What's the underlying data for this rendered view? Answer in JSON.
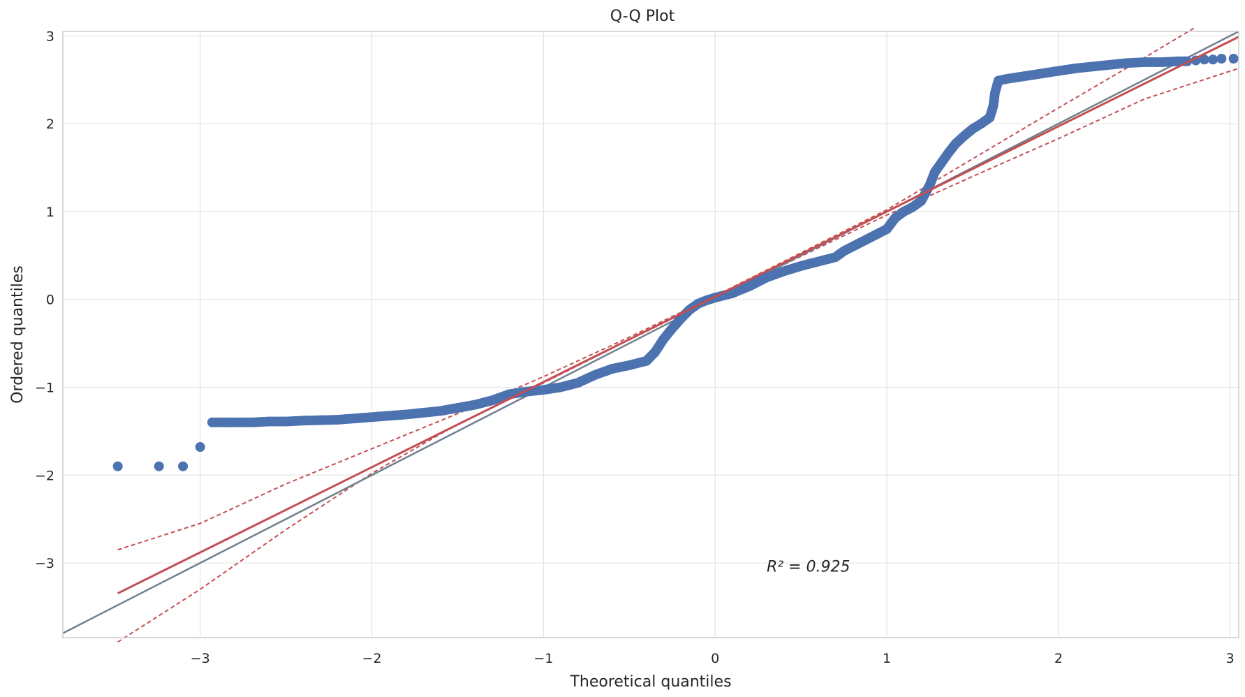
{
  "chart_data": {
    "type": "scatter",
    "title": "Q-Q Plot",
    "xlabel": "Theoretical quantiles",
    "ylabel": "Ordered quantiles",
    "xlim": [
      -3.8,
      3.05
    ],
    "ylim": [
      -3.85,
      3.05
    ],
    "grid": true,
    "x_ticks": [
      -3,
      -2,
      -1,
      0,
      1,
      2,
      3
    ],
    "x_tick_labels": [
      "−3",
      "−2",
      "−1",
      "0",
      "1",
      "2",
      "3"
    ],
    "y_ticks": [
      -3,
      -2,
      -1,
      0,
      1,
      2,
      3
    ],
    "y_tick_labels": [
      "−3",
      "−2",
      "−1",
      "0",
      "1",
      "2",
      "3"
    ],
    "annotation": {
      "text": "R² = 0.925",
      "x": 0.3,
      "y": -3.1
    },
    "reference_line": {
      "slope": 1.0,
      "intercept": 0.0,
      "color": "#708090"
    },
    "fit_line": {
      "slope": 0.97,
      "intercept": 0.03,
      "x_range": [
        -3.48,
        3.05
      ],
      "color": "#c44e52"
    },
    "confidence_band": {
      "color": "#c44e52",
      "upper": [
        [
          -3.48,
          -2.85
        ],
        [
          -3.0,
          -2.55
        ],
        [
          -2.5,
          -2.1
        ],
        [
          -2.0,
          -1.7
        ],
        [
          -1.5,
          -1.3
        ],
        [
          -1.0,
          -0.88
        ],
        [
          -0.5,
          -0.43
        ],
        [
          0.0,
          0.04
        ],
        [
          0.5,
          0.53
        ],
        [
          1.0,
          1.02
        ],
        [
          1.5,
          1.6
        ],
        [
          2.0,
          2.18
        ],
        [
          2.5,
          2.75
        ],
        [
          2.8,
          3.1
        ]
      ],
      "lower": [
        [
          -3.48,
          -3.9
        ],
        [
          -3.0,
          -3.3
        ],
        [
          -2.5,
          -2.62
        ],
        [
          -2.0,
          -1.98
        ],
        [
          -1.5,
          -1.42
        ],
        [
          -1.0,
          -0.95
        ],
        [
          -0.5,
          -0.46
        ],
        [
          0.0,
          0.02
        ],
        [
          0.5,
          0.49
        ],
        [
          1.0,
          0.96
        ],
        [
          1.5,
          1.4
        ],
        [
          2.0,
          1.83
        ],
        [
          2.5,
          2.28
        ],
        [
          3.05,
          2.63
        ]
      ]
    },
    "point_color": "#4c72b0",
    "series": [
      {
        "x": [
          -3.48,
          -3.24,
          -3.1,
          -3.0,
          -2.93,
          -2.87,
          -2.82,
          -2.78,
          -2.74,
          -2.7,
          -2.6,
          -2.5,
          -2.4,
          -2.2,
          -2.0,
          -1.8,
          -1.6,
          -1.4,
          -1.3,
          -1.2,
          -1.1,
          -1.0,
          -0.9,
          -0.8,
          -0.7,
          -0.6,
          -0.5,
          -0.4,
          -0.35,
          -0.3,
          -0.25,
          -0.2,
          -0.15,
          -0.1,
          -0.05,
          0.0,
          0.1,
          0.2,
          0.3,
          0.4,
          0.5,
          0.6,
          0.7,
          0.75,
          0.8,
          0.9,
          1.0,
          1.05,
          1.1,
          1.15,
          1.2,
          1.25,
          1.28,
          1.32,
          1.36,
          1.4,
          1.45,
          1.5,
          1.55,
          1.6,
          1.62,
          1.63,
          1.65,
          1.7,
          1.8,
          1.9,
          2.0,
          2.1,
          2.2,
          2.3,
          2.4,
          2.5,
          2.6,
          2.7,
          2.75,
          2.8,
          2.85,
          2.9,
          2.95,
          3.02
        ],
        "y": [
          -1.9,
          -1.9,
          -1.9,
          -1.68,
          -1.4,
          -1.4,
          -1.4,
          -1.4,
          -1.4,
          -1.4,
          -1.39,
          -1.39,
          -1.38,
          -1.37,
          -1.34,
          -1.31,
          -1.27,
          -1.2,
          -1.15,
          -1.08,
          -1.05,
          -1.03,
          -1.0,
          -0.95,
          -0.86,
          -0.79,
          -0.75,
          -0.7,
          -0.6,
          -0.45,
          -0.33,
          -0.22,
          -0.12,
          -0.05,
          -0.01,
          0.02,
          0.07,
          0.15,
          0.25,
          0.32,
          0.38,
          0.43,
          0.48,
          0.55,
          0.6,
          0.7,
          0.8,
          0.93,
          1.0,
          1.05,
          1.12,
          1.3,
          1.45,
          1.56,
          1.67,
          1.77,
          1.86,
          1.94,
          2.0,
          2.07,
          2.2,
          2.35,
          2.49,
          2.51,
          2.54,
          2.57,
          2.6,
          2.63,
          2.65,
          2.67,
          2.69,
          2.7,
          2.7,
          2.71,
          2.71,
          2.72,
          2.73,
          2.73,
          2.74,
          2.74
        ]
      }
    ]
  }
}
